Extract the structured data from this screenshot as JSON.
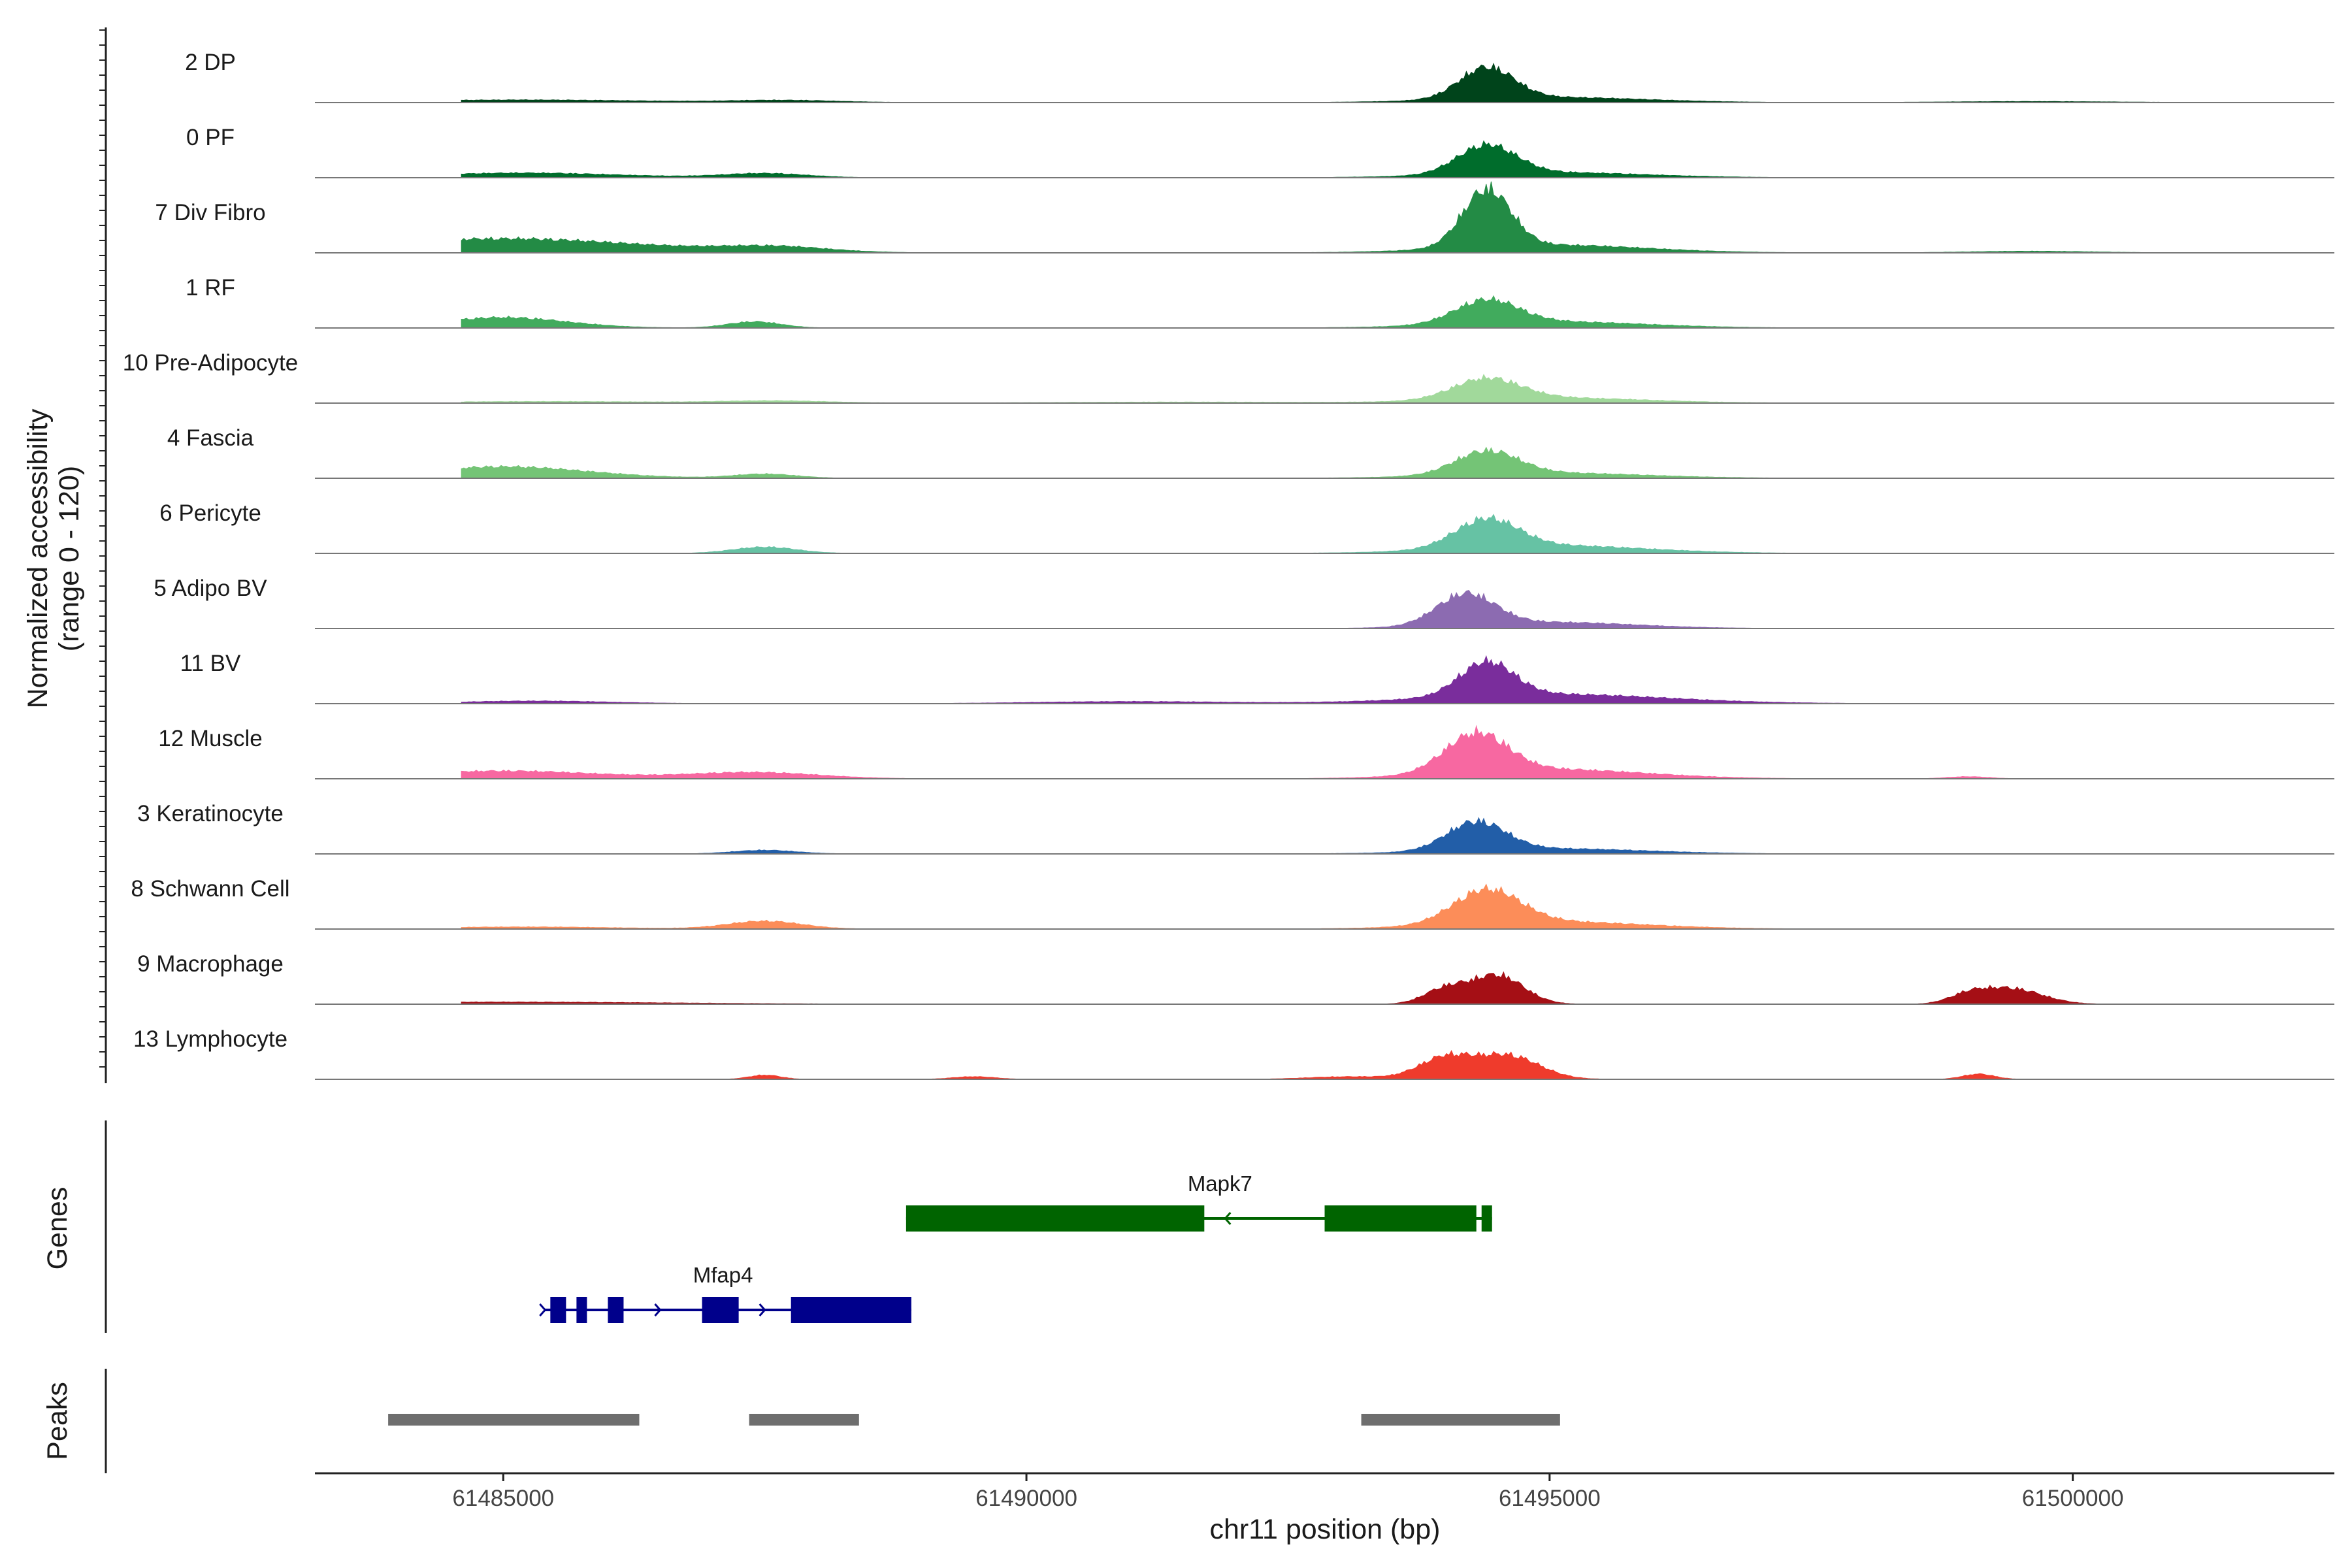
{
  "chart_data": {
    "type": "area",
    "title": "",
    "xlabel": "chr11 position (bp)",
    "ylabel_lines": [
      "Normalized accessibility",
      "(range 0 - 120)"
    ],
    "ylim": [
      0,
      120
    ],
    "xlim": [
      61483200,
      61502500
    ],
    "x_ticks": [
      61485000,
      61490000,
      61495000,
      61500000
    ],
    "x_tick_labels": [
      "61485000",
      "61490000",
      "61495000",
      "61500000"
    ],
    "tracks": [
      {
        "name": "2 DP",
        "color": "#00441b",
        "peaks": [
          [
            61494400,
            60,
            260
          ],
          [
            61495000,
            10,
            900
          ],
          [
            61485200,
            5,
            1200
          ],
          [
            61487700,
            4,
            500
          ],
          [
            61499600,
            2,
            800
          ]
        ]
      },
      {
        "name": "0 PF",
        "color": "#006d2c",
        "peaks": [
          [
            61494400,
            55,
            280
          ],
          [
            61495000,
            10,
            900
          ],
          [
            61485200,
            9,
            900
          ],
          [
            61487500,
            8,
            400
          ]
        ]
      },
      {
        "name": "7 Div Fibro",
        "color": "#238b45",
        "peaks": [
          [
            61494400,
            110,
            230
          ],
          [
            61495000,
            15,
            900
          ],
          [
            61485000,
            27,
            1300
          ],
          [
            61487600,
            10,
            500
          ],
          [
            61499600,
            3,
            600
          ]
        ]
      },
      {
        "name": "1 RF",
        "color": "#41ab5d",
        "peaks": [
          [
            61494400,
            45,
            300
          ],
          [
            61495000,
            12,
            900
          ],
          [
            61485000,
            20,
            600
          ],
          [
            61487400,
            12,
            250
          ]
        ]
      },
      {
        "name": "10 Pre-Adipocyte",
        "color": "#a1d99b",
        "peaks": [
          [
            61494400,
            40,
            320
          ],
          [
            61495000,
            10,
            900
          ],
          [
            61485400,
            3,
            1200
          ],
          [
            61487600,
            4,
            500
          ],
          [
            61491500,
            2,
            1200
          ]
        ]
      },
      {
        "name": "4 Fascia",
        "color": "#74c476",
        "peaks": [
          [
            61494400,
            45,
            300
          ],
          [
            61495000,
            10,
            900
          ],
          [
            61485000,
            22,
            800
          ],
          [
            61487500,
            8,
            300
          ]
        ]
      },
      {
        "name": "6 Pericyte",
        "color": "#66c2a4",
        "peaks": [
          [
            61494400,
            55,
            300
          ],
          [
            61495000,
            15,
            900
          ],
          [
            61487500,
            12,
            300
          ]
        ]
      },
      {
        "name": "5 Adipo BV",
        "color": "#8c6bb1",
        "peaks": [
          [
            61494200,
            60,
            280
          ],
          [
            61495000,
            12,
            800
          ]
        ]
      },
      {
        "name": "11 BV",
        "color": "#7a2d9c",
        "peaks": [
          [
            61494400,
            65,
            260
          ],
          [
            61495000,
            18,
            1100
          ],
          [
            61485300,
            5,
            700
          ],
          [
            61491000,
            4,
            900
          ]
        ]
      },
      {
        "name": "12 Muscle",
        "color": "#f768a1",
        "peaks": [
          [
            61494300,
            75,
            300
          ],
          [
            61495000,
            18,
            900
          ],
          [
            61485000,
            15,
            900
          ],
          [
            61487400,
            12,
            600
          ],
          [
            61499000,
            4,
            200
          ]
        ]
      },
      {
        "name": "3 Keratinocyte",
        "color": "#225ea8",
        "peaks": [
          [
            61494300,
            55,
            280
          ],
          [
            61495000,
            10,
            900
          ],
          [
            61487500,
            7,
            300
          ]
        ]
      },
      {
        "name": "8 Schwann Cell",
        "color": "#fc8d59",
        "peaks": [
          [
            61494400,
            65,
            320
          ],
          [
            61495000,
            14,
            900
          ],
          [
            61487500,
            15,
            350
          ],
          [
            61485200,
            4,
            900
          ]
        ]
      },
      {
        "name": "9 Macrophage",
        "color": "#a50f15",
        "peaks": [
          [
            61494500,
            55,
            250
          ],
          [
            61494000,
            28,
            200
          ],
          [
            61499400,
            30,
            300
          ],
          [
            61499000,
            14,
            180
          ],
          [
            61485000,
            4,
            1600
          ]
        ]
      },
      {
        "name": "13 Lymphocyte",
        "color": "#ef3b2c",
        "peaks": [
          [
            61494000,
            40,
            250
          ],
          [
            61494600,
            45,
            300
          ],
          [
            61487500,
            8,
            150
          ],
          [
            61499100,
            10,
            150
          ],
          [
            61493100,
            5,
            400
          ],
          [
            61489500,
            5,
            200
          ]
        ]
      }
    ],
    "genes_label": "Genes",
    "genes": [
      {
        "name": "Mapk7",
        "start": 61488850,
        "end": 61494450,
        "strand": "-",
        "color": "#006400",
        "exons": [
          [
            61488850,
            61491700
          ],
          [
            61492850,
            61494300
          ],
          [
            61494350,
            61494450
          ]
        ]
      },
      {
        "name": "Mfap4",
        "start": 61485400,
        "end": 61488900,
        "strand": "+",
        "color": "#00008b",
        "exons": [
          [
            61485450,
            61485600
          ],
          [
            61485700,
            61485800
          ],
          [
            61486000,
            61486150
          ],
          [
            61486900,
            61487250
          ],
          [
            61487750,
            61488900
          ]
        ]
      }
    ],
    "peaks_label": "Peaks",
    "peak_color": "#6e6e6e",
    "peak_regions": [
      [
        61483900,
        61486300
      ],
      [
        61487350,
        61488400
      ],
      [
        61493200,
        61495100
      ]
    ]
  }
}
